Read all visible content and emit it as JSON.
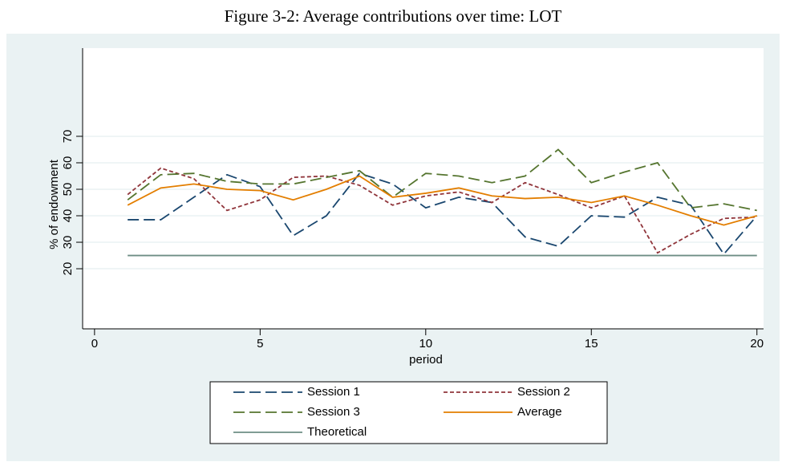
{
  "chart_data": {
    "type": "line",
    "title": "Figure 3-2: Average contributions over time: LOT",
    "x_label": "period",
    "y_label": "% of endowment",
    "x": [
      1,
      2,
      3,
      4,
      5,
      6,
      7,
      8,
      9,
      10,
      11,
      12,
      13,
      14,
      15,
      16,
      17,
      18,
      19,
      20
    ],
    "xlim": [
      -0.36,
      20.2
    ],
    "xticks": [
      0,
      5,
      10,
      15,
      20
    ],
    "ylim": [
      -2.7,
      103.3
    ],
    "yticks": [
      20,
      30,
      40,
      50,
      60,
      70
    ],
    "grid": true,
    "legend": "bottom",
    "series": [
      {
        "name": "Session 1",
        "color": "#1a476f",
        "dash": "long",
        "values": [
          38.5,
          38.5,
          47,
          55.5,
          51,
          32.5,
          40,
          56,
          52,
          43,
          47,
          45,
          32,
          28.5,
          40,
          39.5,
          47,
          44,
          25.5,
          40
        ]
      },
      {
        "name": "Session 2",
        "color": "#90353b",
        "dash": "short",
        "values": [
          48,
          58,
          54,
          42,
          46,
          54.5,
          55,
          51.5,
          44,
          47.5,
          49,
          45,
          52.5,
          48,
          43,
          47.5,
          26,
          33,
          39,
          39.5
        ]
      },
      {
        "name": "Session 3",
        "color": "#55752f",
        "dash": "long",
        "values": [
          46,
          55.5,
          56,
          53,
          52,
          52,
          54.5,
          57,
          47,
          56,
          55,
          52.5,
          55,
          65,
          52.5,
          56.5,
          60,
          43,
          44.5,
          42
        ]
      },
      {
        "name": "Average",
        "color": "#e37e00",
        "dash": "solid",
        "values": [
          44,
          50.5,
          52,
          50,
          49.5,
          46,
          50,
          55,
          47,
          48.5,
          50.5,
          47.5,
          46.5,
          47,
          45,
          47.5,
          44,
          40,
          36.5,
          40
        ]
      },
      {
        "name": "Theoretical",
        "color": "#6e8e84",
        "dash": "solid",
        "values": [
          25,
          25,
          25,
          25,
          25,
          25,
          25,
          25,
          25,
          25,
          25,
          25,
          25,
          25,
          25,
          25,
          25,
          25,
          25,
          25
        ]
      }
    ]
  }
}
